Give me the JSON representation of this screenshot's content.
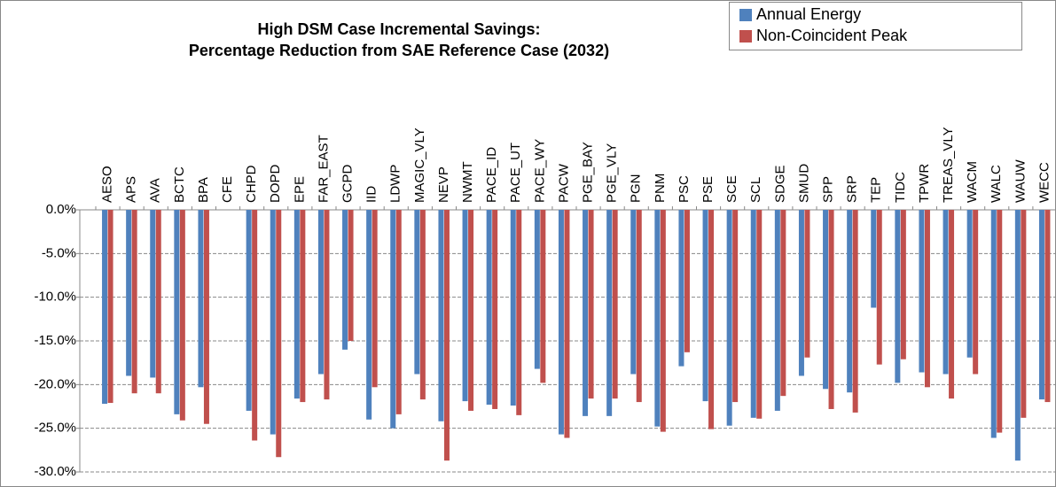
{
  "chart_data": {
    "type": "bar",
    "title": [
      "High DSM Case Incremental Savings:",
      "Percentage Reduction from SAE Reference Case (2032)"
    ],
    "categories": [
      "AESO",
      "APS",
      "AVA",
      "BCTC",
      "BPA",
      "CFE",
      "CHPD",
      "DOPD",
      "EPE",
      "FAR_EAST",
      "GCPD",
      "IID",
      "LDWP",
      "MAGIC_VLY",
      "NEVP",
      "NWMT",
      "PACE_ID",
      "PACE_UT",
      "PACE_WY",
      "PACW",
      "PGE_BAY",
      "PGE_VLY",
      "PGN",
      "PNM",
      "PSC",
      "PSE",
      "SCE",
      "SCL",
      "SDGE",
      "SMUD",
      "SPP",
      "SRP",
      "TEP",
      "TIDC",
      "TPWR",
      "TREAS_VLY",
      "WACM",
      "WALC",
      "WAUW",
      "WECC"
    ],
    "series": [
      {
        "name": "Annual Energy",
        "color": "#4f81bd",
        "values": [
          -22.2,
          -19.0,
          -19.2,
          -23.4,
          -20.3,
          null,
          -23.0,
          -25.7,
          -21.6,
          -18.8,
          -16.0,
          -24.0,
          -25.0,
          -18.8,
          -24.2,
          -21.9,
          -22.3,
          -22.4,
          -18.2,
          -25.7,
          -23.6,
          -23.6,
          -18.8,
          -24.8,
          -17.9,
          -21.9,
          -24.7,
          -23.8,
          -23.0,
          -19.0,
          -20.5,
          -20.9,
          -11.2,
          -19.8,
          -18.6,
          -18.8,
          -16.9,
          -26.1,
          -28.7,
          -21.7
        ]
      },
      {
        "name": "Non-Coincident Peak",
        "color": "#c0504d",
        "values": [
          -22.1,
          -21.0,
          -21.0,
          -24.1,
          -24.5,
          null,
          -26.4,
          -28.3,
          -22.0,
          -21.7,
          -15.0,
          -20.3,
          -23.4,
          -21.7,
          -28.7,
          -23.0,
          -22.8,
          -23.5,
          -19.8,
          -26.1,
          -21.6,
          -21.6,
          -22.0,
          -25.4,
          -16.3,
          -25.1,
          -22.0,
          -23.9,
          -21.3,
          -16.9,
          -22.8,
          -23.2,
          -17.7,
          -17.1,
          -20.3,
          -21.6,
          -18.8,
          -25.5,
          -23.8,
          -22.0
        ]
      }
    ],
    "ylim": [
      -30,
      0
    ],
    "yticks": [
      {
        "value": 0,
        "label": "0.0%"
      },
      {
        "value": -5,
        "label": "-5.0%"
      },
      {
        "value": -10,
        "label": "-10.0%"
      },
      {
        "value": -15,
        "label": "-15.0%"
      },
      {
        "value": -20,
        "label": "-20.0%"
      },
      {
        "value": -25,
        "label": "-25.0%"
      },
      {
        "value": -30,
        "label": "-30.0%"
      }
    ],
    "grid": true,
    "legend": "top-right"
  }
}
